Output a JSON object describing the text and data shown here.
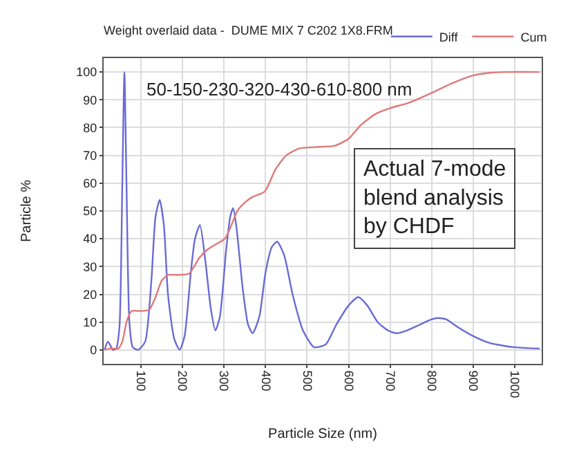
{
  "chart_data": {
    "type": "line",
    "title": "Weight overlaid data -  DUME MIX 7 C202 1X8.FRM",
    "xlabel": "Particle Size (nm)",
    "ylabel": "Particle %",
    "annotations": [
      "50-150-230-320-430-610-800 nm",
      "Actual 7-mode blend analysis by CHDF"
    ],
    "xlim": [
      10,
      1065
    ],
    "xticks": [
      100,
      200,
      300,
      400,
      500,
      600,
      700,
      800,
      900,
      1000
    ],
    "ylim": [
      -5,
      105
    ],
    "yticks": [
      0,
      10,
      20,
      30,
      40,
      50,
      60,
      70,
      80,
      90,
      100
    ],
    "grid": true,
    "legend": "top",
    "marker": "none",
    "line_style": "solid",
    "series": [
      {
        "name": "Diff",
        "color": "#6a6ad6",
        "x": [
          12,
          20,
          25,
          32,
          40,
          48,
          55,
          60,
          65,
          72,
          80,
          93,
          110,
          125,
          135,
          145,
          155,
          165,
          180,
          193,
          205,
          220,
          230,
          242,
          255,
          268,
          279,
          290,
          305,
          315,
          322,
          330,
          345,
          358,
          369,
          385,
          400,
          415,
          428,
          445,
          465,
          490,
          517,
          545,
          570,
          600,
          623,
          645,
          670,
          695,
          716,
          740,
          770,
          800,
          815,
          835,
          865,
          900,
          940,
          997,
          1060
        ],
        "values": [
          0,
          3,
          2,
          0,
          0.5,
          8,
          60,
          100,
          60,
          10,
          1,
          0,
          3,
          25,
          48,
          54,
          45,
          20,
          4,
          0,
          5,
          28,
          40,
          45,
          32,
          15,
          7,
          12,
          36,
          48,
          51,
          44,
          22,
          9,
          6,
          12,
          28,
          37,
          39,
          34,
          20,
          7,
          1,
          2,
          9,
          16,
          19,
          16,
          10,
          7,
          6,
          7,
          9,
          11,
          11.5,
          11,
          8,
          5,
          2.5,
          1,
          0.5
        ]
      },
      {
        "name": "Cum",
        "color": "#e07878",
        "x": [
          12,
          25,
          45,
          55,
          65,
          77,
          100,
          120,
          135,
          150,
          166,
          190,
          216,
          240,
          259,
          280,
          302,
          318,
          332,
          350,
          368,
          398,
          424,
          450,
          481,
          520,
          567,
          600,
          630,
          666,
          700,
          746,
          799,
          850,
          898,
          940,
          977,
          1060
        ],
        "values": [
          0,
          0.5,
          0.5,
          3,
          10,
          14,
          14,
          14.5,
          19,
          25,
          27,
          27,
          27.5,
          33,
          36,
          38,
          40,
          45,
          50,
          53,
          55,
          57,
          65,
          70,
          72.5,
          73,
          73.5,
          76,
          81,
          85,
          87,
          89,
          92.4,
          96,
          98.7,
          99.7,
          100,
          100
        ]
      }
    ]
  }
}
